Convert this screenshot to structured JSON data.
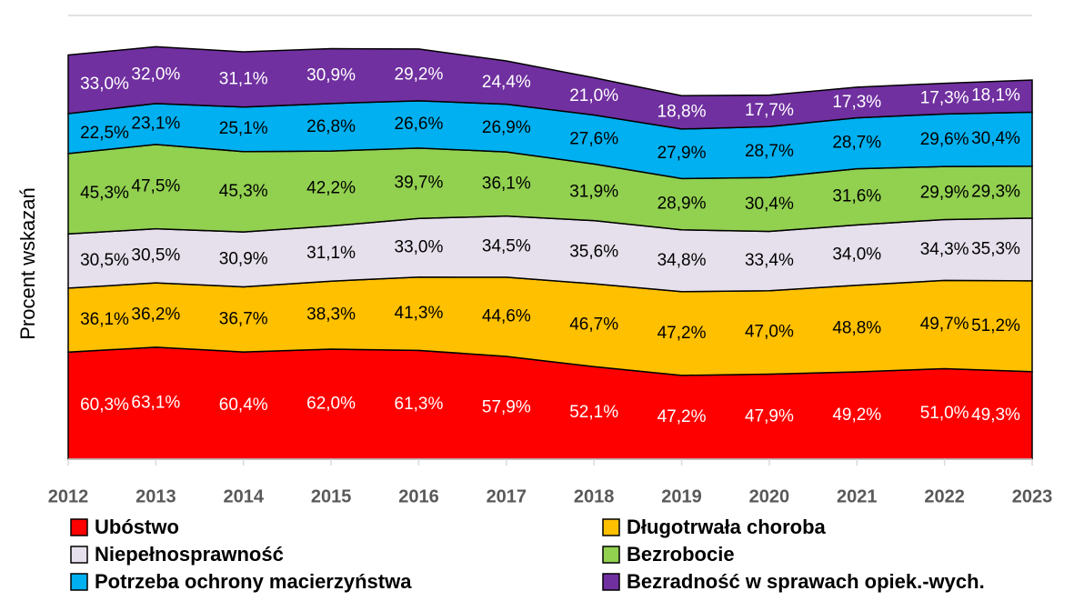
{
  "chart_data": {
    "type": "stacked-area",
    "y_label": "Procent wskazań",
    "x": [
      2012,
      2013,
      2014,
      2015,
      2016,
      2017,
      2018,
      2019,
      2020,
      2021,
      2022,
      2023
    ],
    "xlim": [
      2012,
      2023
    ],
    "ylim": [
      0,
      250
    ],
    "series": [
      {
        "name": "Ubóstwo",
        "color": "#ff0000",
        "label_color": "#ffffff",
        "values": [
          60.3,
          63.1,
          60.4,
          62.0,
          61.3,
          57.9,
          52.1,
          47.2,
          47.9,
          49.2,
          51.0,
          49.3
        ],
        "value_labels": [
          "60,3%",
          "63,1%",
          "60,4%",
          "62,0%",
          "61,3%",
          "57,9%",
          "52,1%",
          "47,2%",
          "47,9%",
          "49,2%",
          "51,0%",
          "49,3%"
        ]
      },
      {
        "name": "Długotrwała choroba",
        "color": "#ffc000",
        "label_color": "#000000",
        "values": [
          36.1,
          36.2,
          36.7,
          38.3,
          41.3,
          44.6,
          46.7,
          47.2,
          47.0,
          48.8,
          49.7,
          51.2
        ],
        "value_labels": [
          "36,1%",
          "36,2%",
          "36,7%",
          "38,3%",
          "41,3%",
          "44,6%",
          "46,7%",
          "47,2%",
          "47,0%",
          "48,8%",
          "49,7%",
          "51,2%"
        ]
      },
      {
        "name": "Niepełnosprawność",
        "color": "#e6e0ec",
        "label_color": "#000000",
        "values": [
          30.5,
          30.5,
          30.9,
          31.1,
          33.0,
          34.5,
          35.6,
          34.8,
          33.4,
          34.0,
          34.3,
          35.3
        ],
        "value_labels": [
          "30,5%",
          "30,5%",
          "30,9%",
          "31,1%",
          "33,0%",
          "34,5%",
          "35,6%",
          "34,8%",
          "33,4%",
          "34,0%",
          "34,3%",
          "35,3%"
        ]
      },
      {
        "name": "Bezrobocie",
        "color": "#92d050",
        "label_color": "#000000",
        "values": [
          45.3,
          47.5,
          45.3,
          42.2,
          39.7,
          36.1,
          31.9,
          28.9,
          30.4,
          31.6,
          29.9,
          29.3
        ],
        "value_labels": [
          "45,3%",
          "47,5%",
          "45,3%",
          "42,2%",
          "39,7%",
          "36,1%",
          "31,9%",
          "28,9%",
          "30,4%",
          "31,6%",
          "29,9%",
          "29,3%"
        ]
      },
      {
        "name": "Potrzeba ochrony macierzyństwa",
        "color": "#00b0f0",
        "label_color": "#000000",
        "values": [
          22.5,
          23.1,
          25.1,
          26.8,
          26.6,
          26.9,
          27.6,
          27.9,
          28.7,
          28.7,
          29.6,
          30.4
        ],
        "value_labels": [
          "22,5%",
          "23,1%",
          "25,1%",
          "26,8%",
          "26,6%",
          "26,9%",
          "27,6%",
          "27,9%",
          "28,7%",
          "28,7%",
          "29,6%",
          "30,4%"
        ]
      },
      {
        "name": "Bezradność w sprawach opiek.-wych.",
        "color": "#7030a0",
        "label_color": "#ffffff",
        "values": [
          33.0,
          32.0,
          31.1,
          30.9,
          29.2,
          24.4,
          21.0,
          18.8,
          17.7,
          17.3,
          17.3,
          18.1
        ],
        "value_labels": [
          "33,0%",
          "32,0%",
          "31,1%",
          "30,9%",
          "29,2%",
          "24,4%",
          "21,0%",
          "18,8%",
          "17,7%",
          "17,3%",
          "17,3%",
          "18,1%"
        ]
      }
    ]
  }
}
